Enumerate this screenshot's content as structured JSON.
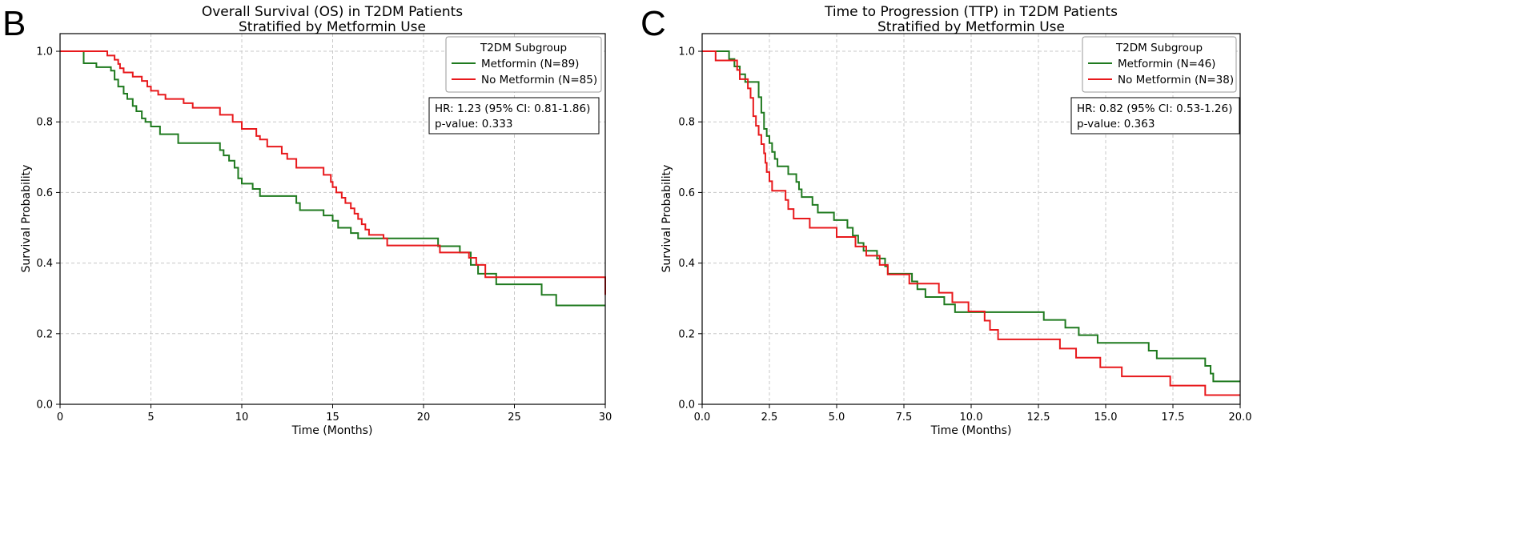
{
  "panels": [
    {
      "letter": "B",
      "title_line1": "Overall Survival (OS) in T2DM Patients",
      "title_line2": "Stratified by Metformin Use",
      "ylabel": "Survival Probability",
      "xlabel": "Time (Months)",
      "legend_title": "T2DM Subgroup",
      "legend_items": [
        "Metformin (N=89)",
        "No Metformin (N=85)"
      ],
      "stats": [
        "HR: 1.23 (95% CI: 0.81-1.86)",
        "p-value: 0.333"
      ]
    },
    {
      "letter": "C",
      "title_line1": "Time to Progression (TTP) in T2DM Patients",
      "title_line2": "Stratified by Metformin Use",
      "ylabel": "Survival Probability",
      "xlabel": "Time (Months)",
      "legend_title": "T2DM Subgroup",
      "legend_items": [
        "Metformin (N=46)",
        "No Metformin (N=38)"
      ],
      "stats": [
        "HR: 0.82 (95% CI: 0.53-1.26)",
        "p-value: 0.363"
      ]
    }
  ],
  "chart_data": [
    {
      "type": "line",
      "step": true,
      "title": "Overall Survival (OS) in T2DM Patients Stratified by Metformin Use",
      "xlabel": "Time (Months)",
      "ylabel": "Survival Probability",
      "xlim": [
        0,
        30
      ],
      "ylim": [
        0,
        1.05
      ],
      "xticks": [
        0,
        5,
        10,
        15,
        20,
        25,
        30
      ],
      "xtick_labels": [
        "0",
        "5",
        "10",
        "15",
        "20",
        "25",
        "30"
      ],
      "yticks": [
        0,
        0.2,
        0.4,
        0.6,
        0.8,
        1.0
      ],
      "ytick_labels": [
        "0.0",
        "0.2",
        "0.4",
        "0.6",
        "0.8",
        "1.0"
      ],
      "grid": true,
      "legend_position": "top-right",
      "series": [
        {
          "name": "Metformin (N=89)",
          "color": "#1f7a1f",
          "points": [
            [
              0,
              1.0
            ],
            [
              1.3,
              1.0
            ],
            [
              1.3,
              0.966
            ],
            [
              2.0,
              0.955
            ],
            [
              2.8,
              0.945
            ],
            [
              3.0,
              0.92
            ],
            [
              3.2,
              0.9
            ],
            [
              3.5,
              0.88
            ],
            [
              3.7,
              0.865
            ],
            [
              4.0,
              0.845
            ],
            [
              4.2,
              0.83
            ],
            [
              4.5,
              0.81
            ],
            [
              4.7,
              0.8
            ],
            [
              5.0,
              0.787
            ],
            [
              5.5,
              0.765
            ],
            [
              6.5,
              0.74
            ],
            [
              8.8,
              0.72
            ],
            [
              9.0,
              0.705
            ],
            [
              9.3,
              0.69
            ],
            [
              9.6,
              0.67
            ],
            [
              9.8,
              0.64
            ],
            [
              10.0,
              0.625
            ],
            [
              10.6,
              0.61
            ],
            [
              11.0,
              0.59
            ],
            [
              13.0,
              0.57
            ],
            [
              13.2,
              0.55
            ],
            [
              14.5,
              0.535
            ],
            [
              15.0,
              0.52
            ],
            [
              15.3,
              0.5
            ],
            [
              16.0,
              0.485
            ],
            [
              16.4,
              0.47
            ],
            [
              20.8,
              0.47
            ],
            [
              20.8,
              0.448
            ],
            [
              22.0,
              0.43
            ],
            [
              22.6,
              0.395
            ],
            [
              23.0,
              0.37
            ],
            [
              24.0,
              0.37
            ],
            [
              24.0,
              0.34
            ],
            [
              26.5,
              0.34
            ],
            [
              26.5,
              0.31
            ],
            [
              27.3,
              0.31
            ],
            [
              27.3,
              0.28
            ],
            [
              30.0,
              0.28
            ]
          ]
        },
        {
          "name": "No Metformin (N=85)",
          "color": "#e8191c",
          "points": [
            [
              0,
              1.0
            ],
            [
              2.4,
              1.0
            ],
            [
              2.6,
              0.988
            ],
            [
              3.0,
              0.976
            ],
            [
              3.2,
              0.964
            ],
            [
              3.3,
              0.952
            ],
            [
              3.5,
              0.94
            ],
            [
              4.0,
              0.928
            ],
            [
              4.5,
              0.916
            ],
            [
              4.8,
              0.9
            ],
            [
              5.0,
              0.888
            ],
            [
              5.4,
              0.877
            ],
            [
              5.8,
              0.865
            ],
            [
              6.8,
              0.853
            ],
            [
              7.3,
              0.84
            ],
            [
              8.8,
              0.82
            ],
            [
              9.5,
              0.8
            ],
            [
              10.0,
              0.78
            ],
            [
              10.8,
              0.76
            ],
            [
              11.0,
              0.75
            ],
            [
              11.4,
              0.73
            ],
            [
              12.2,
              0.71
            ],
            [
              12.5,
              0.695
            ],
            [
              13.0,
              0.67
            ],
            [
              14.2,
              0.67
            ],
            [
              14.5,
              0.65
            ],
            [
              14.9,
              0.63
            ],
            [
              15.0,
              0.615
            ],
            [
              15.2,
              0.6
            ],
            [
              15.5,
              0.585
            ],
            [
              15.7,
              0.57
            ],
            [
              16.0,
              0.555
            ],
            [
              16.2,
              0.54
            ],
            [
              16.4,
              0.525
            ],
            [
              16.6,
              0.51
            ],
            [
              16.8,
              0.495
            ],
            [
              17.0,
              0.48
            ],
            [
              17.8,
              0.47
            ],
            [
              18.0,
              0.45
            ],
            [
              20.9,
              0.45
            ],
            [
              20.9,
              0.43
            ],
            [
              22.5,
              0.415
            ],
            [
              22.9,
              0.395
            ],
            [
              23.4,
              0.375
            ],
            [
              23.4,
              0.36
            ],
            [
              30.0,
              0.36
            ],
            [
              30.0,
              0.31
            ]
          ]
        }
      ],
      "annotations": [
        "HR: 1.23 (95% CI: 0.81-1.86)",
        "p-value: 0.333"
      ]
    },
    {
      "type": "line",
      "step": true,
      "title": "Time to Progression (TTP) in T2DM Patients Stratified by Metformin Use",
      "xlabel": "Time (Months)",
      "ylabel": "Survival Probability",
      "xlim": [
        0,
        20
      ],
      "ylim": [
        0,
        1.05
      ],
      "xticks": [
        0,
        2.5,
        5,
        7.5,
        10,
        12.5,
        15,
        17.5,
        20
      ],
      "xtick_labels": [
        "0.0",
        "2.5",
        "5.0",
        "7.5",
        "10.0",
        "12.5",
        "15.0",
        "17.5",
        "20.0"
      ],
      "yticks": [
        0,
        0.2,
        0.4,
        0.6,
        0.8,
        1.0
      ],
      "ytick_labels": [
        "0.0",
        "0.2",
        "0.4",
        "0.6",
        "0.8",
        "1.0"
      ],
      "grid": true,
      "legend_position": "top-right",
      "series": [
        {
          "name": "Metformin (N=46)",
          "color": "#1f7a1f",
          "points": [
            [
              0,
              1.0
            ],
            [
              1.0,
              1.0
            ],
            [
              1.0,
              0.978
            ],
            [
              1.2,
              0.957
            ],
            [
              1.4,
              0.935
            ],
            [
              1.6,
              0.913
            ],
            [
              2.0,
              0.913
            ],
            [
              2.1,
              0.87
            ],
            [
              2.2,
              0.826
            ],
            [
              2.3,
              0.78
            ],
            [
              2.4,
              0.76
            ],
            [
              2.5,
              0.74
            ],
            [
              2.6,
              0.715
            ],
            [
              2.7,
              0.695
            ],
            [
              2.8,
              0.674
            ],
            [
              3.2,
              0.652
            ],
            [
              3.5,
              0.63
            ],
            [
              3.6,
              0.609
            ],
            [
              3.7,
              0.587
            ],
            [
              4.1,
              0.565
            ],
            [
              4.3,
              0.543
            ],
            [
              4.9,
              0.522
            ],
            [
              5.4,
              0.5
            ],
            [
              5.6,
              0.478
            ],
            [
              5.8,
              0.457
            ],
            [
              6.0,
              0.435
            ],
            [
              6.5,
              0.413
            ],
            [
              6.8,
              0.391
            ],
            [
              6.9,
              0.37
            ],
            [
              7.8,
              0.348
            ],
            [
              8.0,
              0.326
            ],
            [
              8.3,
              0.304
            ],
            [
              9.0,
              0.283
            ],
            [
              9.4,
              0.261
            ],
            [
              12.7,
              0.261
            ],
            [
              12.7,
              0.239
            ],
            [
              13.5,
              0.217
            ],
            [
              14.0,
              0.196
            ],
            [
              14.7,
              0.174
            ],
            [
              16.6,
              0.152
            ],
            [
              16.9,
              0.13
            ],
            [
              18.7,
              0.13
            ],
            [
              18.7,
              0.109
            ],
            [
              18.9,
              0.087
            ],
            [
              19.0,
              0.065
            ],
            [
              20.0,
              0.065
            ]
          ]
        },
        {
          "name": "No Metformin (N=38)",
          "color": "#e8191c",
          "points": [
            [
              0,
              1.0
            ],
            [
              0.5,
              1.0
            ],
            [
              0.5,
              0.974
            ],
            [
              1.3,
              0.947
            ],
            [
              1.4,
              0.921
            ],
            [
              1.7,
              0.895
            ],
            [
              1.8,
              0.868
            ],
            [
              1.9,
              0.842
            ],
            [
              1.9,
              0.816
            ],
            [
              2.0,
              0.789
            ],
            [
              2.1,
              0.763
            ],
            [
              2.2,
              0.737
            ],
            [
              2.3,
              0.711
            ],
            [
              2.35,
              0.684
            ],
            [
              2.4,
              0.658
            ],
            [
              2.5,
              0.632
            ],
            [
              2.6,
              0.605
            ],
            [
              3.1,
              0.579
            ],
            [
              3.2,
              0.553
            ],
            [
              3.4,
              0.526
            ],
            [
              4.0,
              0.5
            ],
            [
              5.0,
              0.474
            ],
            [
              5.7,
              0.447
            ],
            [
              6.1,
              0.421
            ],
            [
              6.6,
              0.395
            ],
            [
              6.9,
              0.368
            ],
            [
              7.7,
              0.342
            ],
            [
              8.8,
              0.316
            ],
            [
              9.3,
              0.289
            ],
            [
              9.9,
              0.263
            ],
            [
              10.5,
              0.237
            ],
            [
              10.7,
              0.211
            ],
            [
              11.0,
              0.184
            ],
            [
              13.3,
              0.158
            ],
            [
              13.9,
              0.132
            ],
            [
              14.8,
              0.105
            ],
            [
              15.6,
              0.079
            ],
            [
              17.4,
              0.053
            ],
            [
              18.7,
              0.026
            ],
            [
              20.0,
              0.026
            ]
          ]
        }
      ],
      "annotations": [
        "HR: 0.82 (95% CI: 0.53-1.26)",
        "p-value: 0.363"
      ]
    }
  ]
}
